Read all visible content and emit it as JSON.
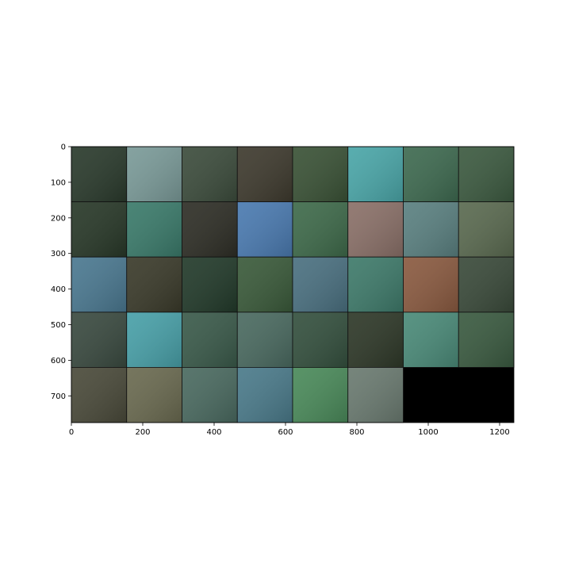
{
  "chart_data": {
    "type": "image",
    "xlim": [
      0,
      1240
    ],
    "ylim": [
      775,
      0
    ],
    "xticks": [
      0,
      200,
      400,
      600,
      800,
      1000,
      1200
    ],
    "yticks": [
      0,
      100,
      200,
      300,
      400,
      500,
      600,
      700
    ],
    "background": "#000000",
    "tile_colors": [
      "#2a3a2c",
      "#7a9a98",
      "#3c4c3c",
      "#3e3a2e",
      "#3a5236",
      "#4aa6a8",
      "#3e6a50",
      "#3c5a40",
      "#283828",
      "#3a7a6a",
      "#2e2e26",
      "#4a7ab0",
      "#3e6a4a",
      "#8a7068",
      "#5a8080",
      "#5a6a50",
      "#4a7890",
      "#3a3a2a",
      "#223a2a",
      "#3a5a3a",
      "#4a7080",
      "#3e7a6a",
      "#8a5a40",
      "#3a4a3a",
      "#3a4a40",
      "#48a0a8",
      "#3a5a4a",
      "#4a6a60",
      "#34503e",
      "#2e3828",
      "#4a8a78",
      "#3a5a40",
      "#4a4a3a",
      "#6a6a50",
      "#4a6a60",
      "#4a7a8a",
      "#4a8a5a",
      "#6a7a70"
    ]
  }
}
